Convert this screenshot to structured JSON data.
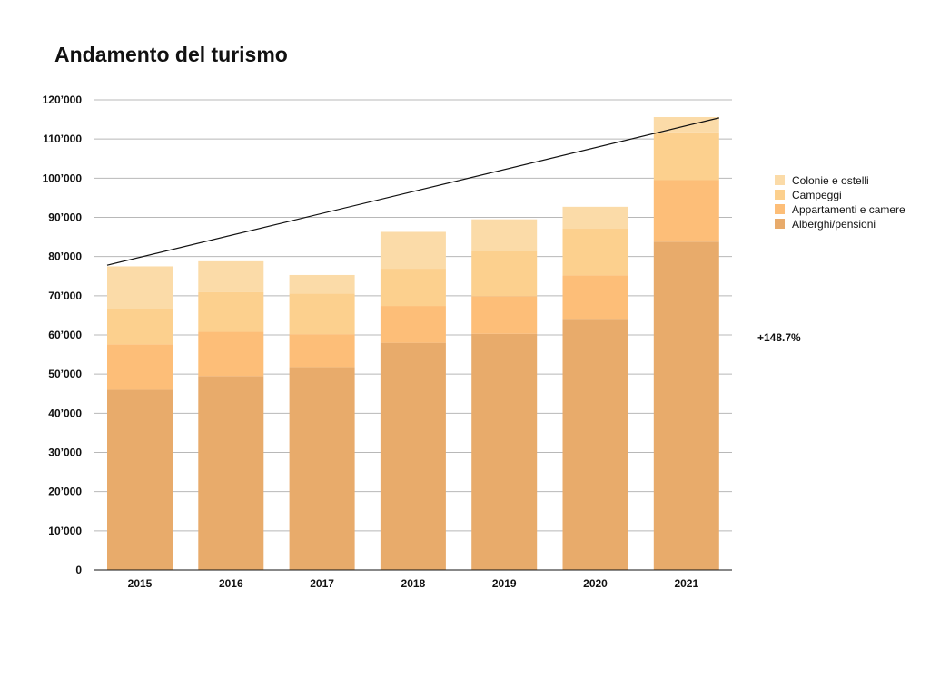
{
  "chart_data": {
    "type": "bar",
    "stacked": true,
    "title": "Andamento del turismo",
    "categories": [
      "2015",
      "2016",
      "2017",
      "2018",
      "2019",
      "2020",
      "2021"
    ],
    "series": [
      {
        "name": "Alberghi/pensioni",
        "color": "#e8ab6b",
        "values": [
          46000,
          49500,
          51800,
          58000,
          60300,
          63900,
          83800
        ]
      },
      {
        "name": "Appartamenti e camere",
        "color": "#fdbe78",
        "values": [
          11600,
          11300,
          8400,
          9400,
          9600,
          11300,
          15700
        ]
      },
      {
        "name": "Campeggi",
        "color": "#fcd08e",
        "values": [
          9000,
          10100,
          10400,
          9500,
          11500,
          11900,
          12200
        ]
      },
      {
        "name": "Colonie e ostelli",
        "color": "#fbdba8",
        "values": [
          10900,
          7900,
          4700,
          9400,
          8100,
          5600,
          3900
        ]
      }
    ],
    "trendline": {
      "from": [
        "2015",
        77800
      ],
      "to": [
        "2021",
        115400
      ]
    },
    "ylim": [
      0,
      120000
    ],
    "yticks": [
      0,
      10000,
      20000,
      30000,
      40000,
      50000,
      60000,
      70000,
      80000,
      90000,
      100000,
      110000,
      120000
    ],
    "ytick_labels": [
      "0",
      "10’000",
      "20’000",
      "30’000",
      "40’000",
      "50’000",
      "60’000",
      "70’000",
      "80’000",
      "90’000",
      "100’000",
      "110’000",
      "120’000"
    ],
    "grid": true,
    "legend_position": "right",
    "legend_order": [
      "Colonie e ostelli",
      "Campeggi",
      "Appartamenti e camere",
      "Alberghi/pensioni"
    ],
    "annotation": "+148.7%",
    "xlabel": "",
    "ylabel": ""
  }
}
